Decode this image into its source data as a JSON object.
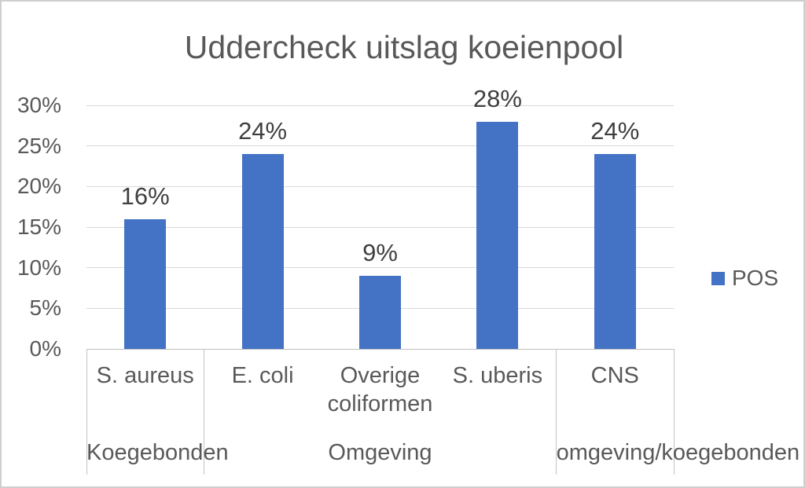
{
  "chart_data": {
    "type": "bar",
    "title": "Uddercheck uitslag koeienpool",
    "categories": [
      "S. aureus",
      "E. coli",
      "Overige coliformen",
      "S. uberis",
      "CNS"
    ],
    "category_groups": [
      {
        "label": "Koegebonden",
        "start": 0,
        "end": 1
      },
      {
        "label": "Omgeving",
        "start": 1,
        "end": 4
      },
      {
        "label": "omgeving/koegebonden",
        "start": 4,
        "end": 5
      }
    ],
    "series": [
      {
        "name": "POS",
        "values": [
          16,
          24,
          9,
          28,
          24
        ],
        "data_labels": [
          "16%",
          "24%",
          "9%",
          "28%",
          "24%"
        ],
        "color": "#4472C4"
      }
    ],
    "xlabel": "",
    "ylabel": "",
    "ylim": [
      0,
      30
    ],
    "ytick_step": 5,
    "ytick_labels": [
      "0%",
      "5%",
      "10%",
      "15%",
      "20%",
      "25%",
      "30%"
    ],
    "grid": true,
    "legend_position": "right"
  },
  "colors": {
    "bar": "#4472C4",
    "title_text": "#595959",
    "axis_text": "#595959",
    "data_label_text": "#3F3F3F",
    "gridline": "#D9D9D9",
    "axis_line": "#BFBFBF",
    "separator_line": "#C3C3C3"
  }
}
